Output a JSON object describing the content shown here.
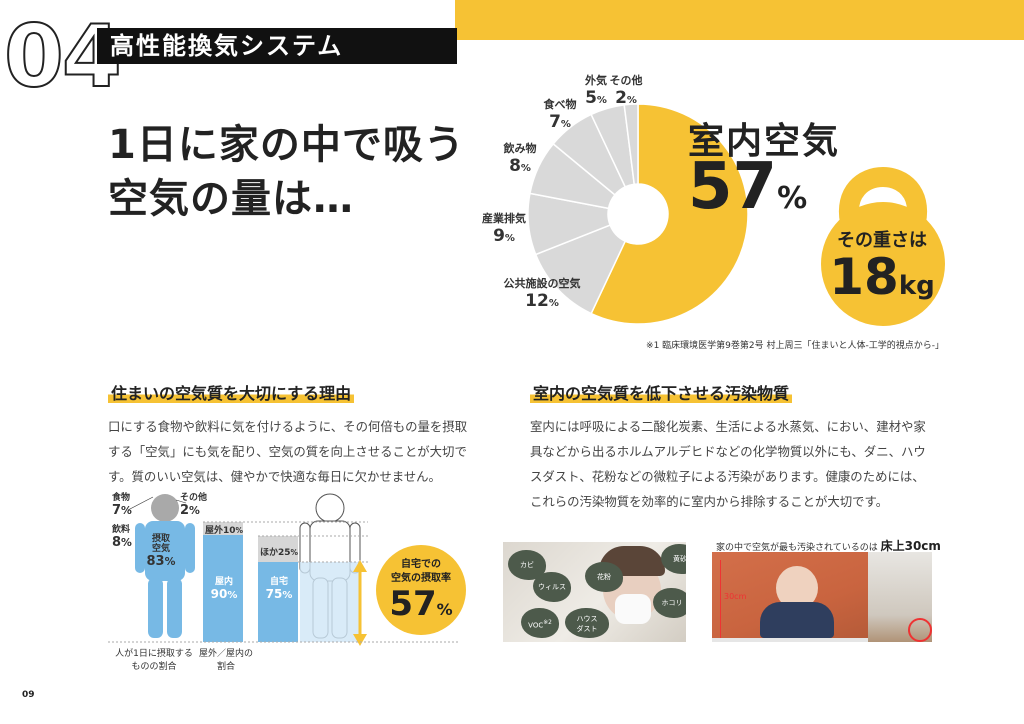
{
  "section": {
    "number": "04",
    "title": "高性能換気システム"
  },
  "headline": "1日に家の中で吸う\n空気の量は…",
  "pie": {
    "main_label": "室内空気",
    "main_value": "57",
    "unit": "%",
    "weight_label": "その重さは",
    "weight_value": "18",
    "weight_unit": "kg",
    "labels": [
      {
        "name": "その他",
        "value": "2"
      },
      {
        "name": "外気",
        "value": "5"
      },
      {
        "name": "食べ物",
        "value": "7"
      },
      {
        "name": "飲み物",
        "value": "8"
      },
      {
        "name": "産業排気",
        "value": "9"
      },
      {
        "name": "公共施設の空気",
        "value": "12"
      }
    ],
    "reference": "※1 臨床環境医学第9巻第2号 村上周三「住まいと人体-工学的視点から-」"
  },
  "chart_data": {
    "type": "pie",
    "categories": [
      "室内空気",
      "公共施設の空気",
      "産業排気",
      "飲み物",
      "食べ物",
      "外気",
      "その他"
    ],
    "values": [
      57,
      12,
      9,
      8,
      7,
      5,
      2
    ],
    "unit": "%",
    "colors": [
      "#f6c234",
      "#d9d9d9",
      "#d9d9d9",
      "#d9d9d9",
      "#d9d9d9",
      "#d9d9d9",
      "#d9d9d9"
    ]
  },
  "left_section": {
    "title": "住まいの空気質を大切にする理由",
    "body": "口にする食物や飲料に気を付けるように、その何倍もの量を摂取する「空気」にも気を配り、空気の質を向上させることが大切です。質のいい空気は、健やかで快適な毎日に欠かせません。"
  },
  "right_section": {
    "title": "室内の空気質を低下させる汚染物質",
    "body": "室内には呼吸による二酸化炭素、生活による水蒸気、におい、建材や家具などから出るホルムアルデヒドなどの化学物質以外にも、ダニ、ハウスダスト、花粉などの微粒子による汚染があります。健康のためには、これらの汚染物質を効率的に室内から排除することが大切です。"
  },
  "figure": {
    "body_labels": {
      "food": "食物",
      "food_val": "7",
      "other": "その他",
      "other_val": "2",
      "drink": "飲料",
      "drink_val": "8",
      "air": "摂取\n空気",
      "air_val": "83",
      "unit": "%"
    },
    "bar1": {
      "top_label": "屋外",
      "top_val": "10",
      "bottom_label": "屋内",
      "bottom_val": "90"
    },
    "bar2": {
      "top_label": "ほか",
      "top_val": "25",
      "bottom_label": "自宅",
      "bottom_val": "75"
    },
    "caption1": "人が1日に摂取する\nものの割合",
    "caption2": "屋外／屋内の\n割合",
    "callout_label": "自宅での\n空気の摂取率",
    "callout_value": "57"
  },
  "photos": {
    "pollutants": [
      "カビ",
      "ウィルス",
      "花粉",
      "黄砂",
      "ホコリ",
      "VOC",
      "ハウス\nダスト"
    ],
    "voc_sup": "※2",
    "floor_caption": "家の中で空気が最も汚染されているのは",
    "floor_emphasis": "床上30cm",
    "measure_label": "30cm"
  },
  "page_number": "09"
}
